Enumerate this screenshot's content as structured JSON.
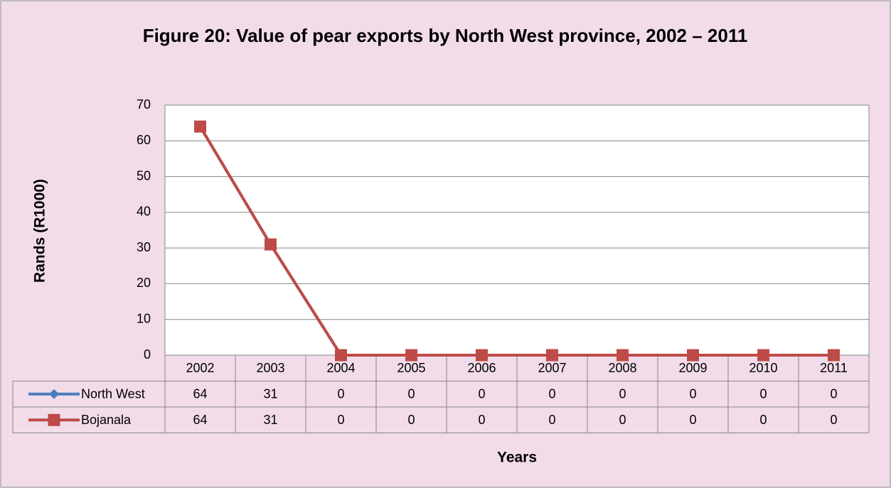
{
  "chart_data": {
    "type": "line",
    "title": "Figure 20: Value of pear exports by North West province, 2002 – 2011",
    "x_label": "Years",
    "y_label": "Rands (R1000)",
    "categories": [
      "2002",
      "2003",
      "2004",
      "2005",
      "2006",
      "2007",
      "2008",
      "2009",
      "2010",
      "2011"
    ],
    "series": [
      {
        "name": "North West",
        "color": "#4a7ebb",
        "marker": "diamond",
        "values": [
          64,
          31,
          0,
          0,
          0,
          0,
          0,
          0,
          0,
          0
        ]
      },
      {
        "name": "Bojanala",
        "color": "#be4b48",
        "marker": "square",
        "values": [
          64,
          31,
          0,
          0,
          0,
          0,
          0,
          0,
          0,
          0
        ]
      }
    ],
    "ylim": [
      0,
      70
    ],
    "yticks": [
      0,
      10,
      20,
      30,
      40,
      50,
      60,
      70
    ],
    "grid": true,
    "data_table": true
  }
}
